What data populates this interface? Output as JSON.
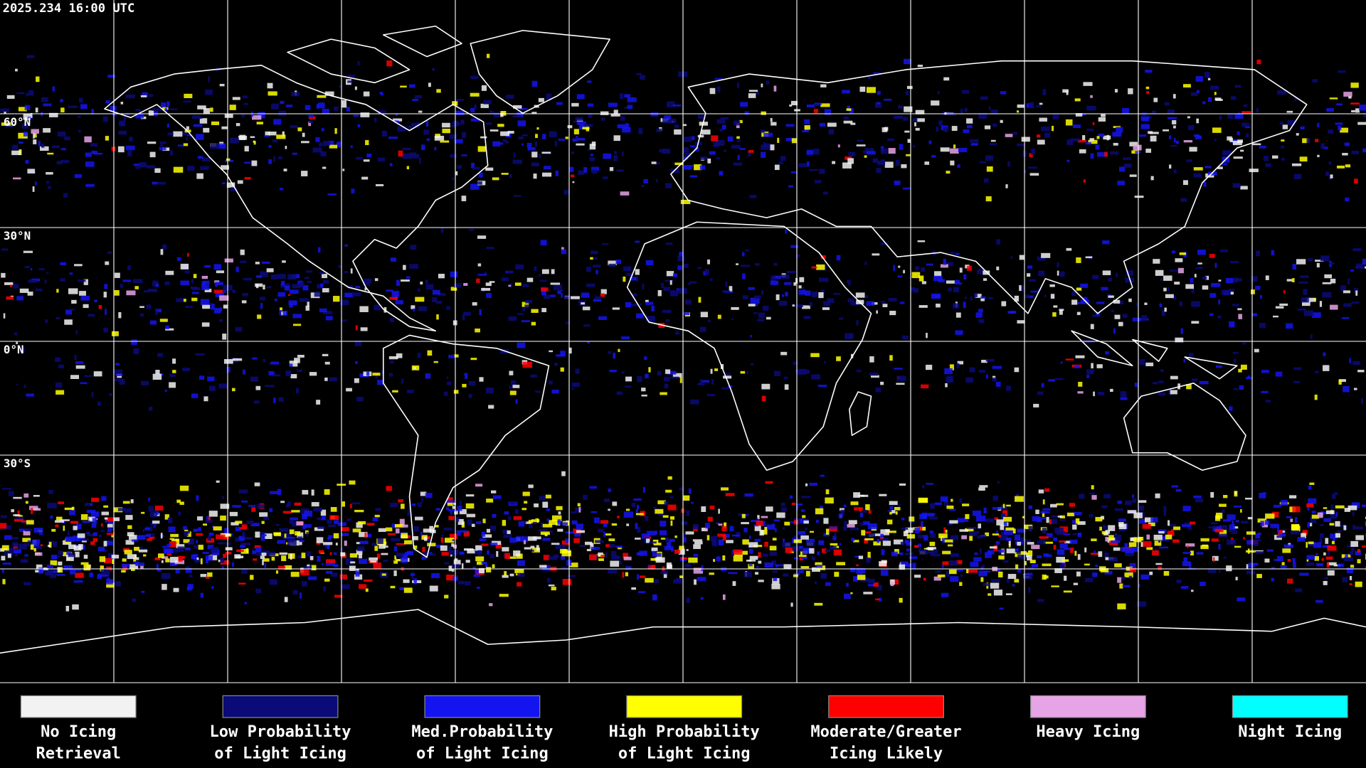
{
  "timestamp": "2025.234 16:00 UTC",
  "latitude_labels": [
    "60°N",
    "30°N",
    "0°N",
    "30°S"
  ],
  "legend": [
    {
      "label": [
        "No Icing",
        "Retrieval"
      ],
      "color": "#f2f2f2"
    },
    {
      "label": [
        "Low Probability",
        "of Light Icing"
      ],
      "color": "#0a0a78"
    },
    {
      "label": [
        "Med.Probability",
        "of Light Icing"
      ],
      "color": "#1414f0"
    },
    {
      "label": [
        "High Probability",
        "of Light Icing"
      ],
      "color": "#ffff00"
    },
    {
      "label": [
        "Moderate/Greater",
        "Icing Likely"
      ],
      "color": "#ff0000"
    },
    {
      "label": [
        "Heavy Icing"
      ],
      "color": "#e6a3e6"
    },
    {
      "label": [
        "Night Icing"
      ],
      "color": "#00ffff"
    }
  ]
}
